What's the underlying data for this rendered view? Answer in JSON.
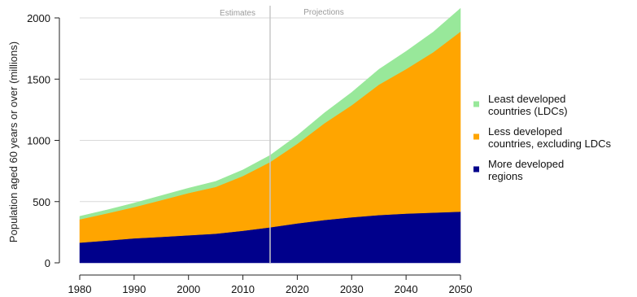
{
  "chart_data": {
    "type": "area",
    "stacked": true,
    "x": [
      1980,
      1985,
      1990,
      1995,
      2000,
      2005,
      2010,
      2015,
      2020,
      2025,
      2030,
      2035,
      2040,
      2045,
      2050
    ],
    "series": [
      {
        "name": "More developed regions",
        "name_lines": [
          "More developed",
          "regions"
        ],
        "color": "#00008b",
        "values": [
          165,
          182,
          200,
          212,
          225,
          238,
          262,
          290,
          322,
          350,
          372,
          390,
          402,
          410,
          418
        ]
      },
      {
        "name": "Less developed countries, excluding LDCs",
        "name_lines": [
          "Less developed",
          "countries, excluding LDCs"
        ],
        "color": "#ffa500",
        "values": [
          190,
          222,
          255,
          300,
          345,
          382,
          447,
          533,
          650,
          790,
          915,
          1065,
          1180,
          1310,
          1470
        ]
      },
      {
        "name": "Least developed countries (LDCs)",
        "name_lines": [
          "Least developed",
          "countries (LDCs)"
        ],
        "color": "#98e89a",
        "values": [
          25,
          28,
          33,
          37,
          40,
          45,
          50,
          55,
          68,
          85,
          105,
          125,
          145,
          165,
          190
        ]
      }
    ],
    "legend_order": [
      2,
      1,
      0
    ],
    "ylabel": "Population aged 60 years or over (millions)",
    "xlabel": "",
    "xlim": [
      1980,
      2050
    ],
    "ylim": [
      0,
      2000
    ],
    "xticks": [
      1980,
      1990,
      2000,
      2010,
      2020,
      2030,
      2040,
      2050
    ],
    "yticks": [
      0,
      500,
      1000,
      1500,
      2000
    ],
    "grid": "horizontal",
    "legend_position": "right",
    "divider_x": 2015,
    "era_labels": {
      "left": "Estimates",
      "right": "Projections"
    },
    "grid_color": "#d9d9d9",
    "divider_color": "#c8c8c8"
  }
}
